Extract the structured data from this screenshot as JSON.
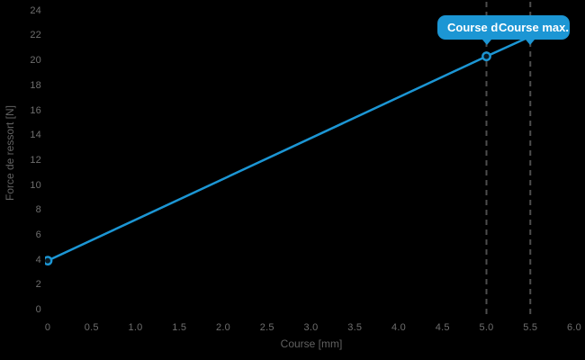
{
  "colors": {
    "background": "#000000",
    "line": "#1c96d4",
    "marker_fill": "#081923",
    "tick_label": "#6e6e6e",
    "axis_title": "#616161",
    "guideline": "#4d4d4d",
    "tooltip_bg": "#1c96d4",
    "tooltip_text": "#ffffff"
  },
  "tooltips": {
    "course_de": "Course de",
    "course_max": "Course max."
  },
  "chart_data": {
    "type": "line",
    "title": "",
    "xlabel": "Course [mm]",
    "ylabel": "Force de ressort [N]",
    "xlim": [
      0,
      6.0
    ],
    "ylim": [
      0,
      24
    ],
    "grid": false,
    "legend": false,
    "x_ticks": [
      0,
      0.5,
      1.0,
      1.5,
      2.0,
      2.5,
      3.0,
      3.5,
      4.0,
      4.5,
      5.0,
      5.5,
      6.0
    ],
    "x_tick_labels": [
      "0",
      "0.5",
      "1.0",
      "1.5",
      "2.0",
      "2.5",
      "3.0",
      "3.5",
      "4.0",
      "4.5",
      "5.0",
      "5.5",
      "6.0"
    ],
    "y_ticks": [
      0,
      2,
      4,
      6,
      8,
      10,
      12,
      14,
      16,
      18,
      20,
      22,
      24
    ],
    "y_tick_labels": [
      "0",
      "2",
      "4",
      "6",
      "8",
      "10",
      "12",
      "14",
      "16",
      "18",
      "20",
      "22",
      "24"
    ],
    "series": [
      {
        "name": "Force de ressort",
        "x": [
          0,
          5.0,
          5.5
        ],
        "y": [
          4,
          20.4,
          22
        ]
      }
    ],
    "annotations": [
      {
        "type": "vline",
        "x": 5.0,
        "label": "Course de"
      },
      {
        "type": "vline",
        "x": 5.5,
        "label": "Course max."
      }
    ]
  }
}
